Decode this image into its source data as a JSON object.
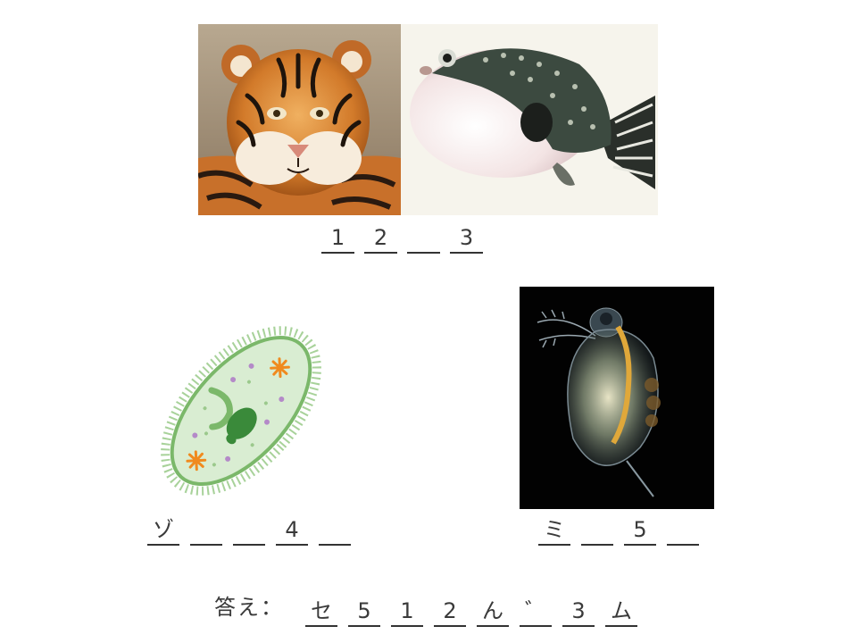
{
  "puzzle1": {
    "images": [
      "tiger",
      "pufferfish"
    ],
    "blanks": [
      "1",
      "2",
      "",
      "3"
    ]
  },
  "puzzle2": {
    "image": "paramecium",
    "blanks": [
      "ゾ",
      "",
      "",
      "4",
      ""
    ]
  },
  "puzzle3": {
    "image": "daphnia",
    "blanks": [
      "ミ",
      "",
      "5",
      ""
    ]
  },
  "answer": {
    "label": "答え：",
    "blanks": [
      "セ",
      "5",
      "1",
      "2",
      "ん",
      "゛",
      "3",
      "ム"
    ]
  }
}
